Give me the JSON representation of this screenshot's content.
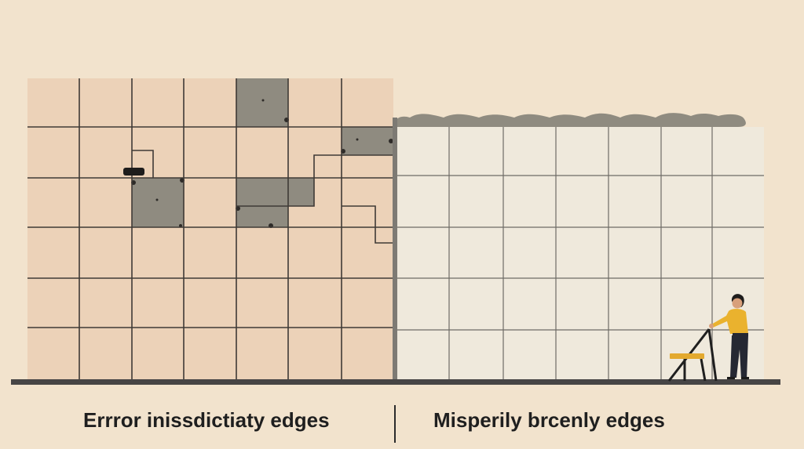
{
  "captions": {
    "left": "Errror inissdictiaty edges",
    "right": "Misperily brcenly edges"
  },
  "colors": {
    "background": "#f2e3cd",
    "left_tile": "#ecd2b8",
    "right_tile": "#efe9dc",
    "damaged_tile": "#8f8b80",
    "grout": "#3f3a36",
    "floor": "#474545",
    "person_shirt": "#eab22e",
    "person_pants": "#252833",
    "ladder_step": "#e3a92f"
  },
  "icons": {
    "left_wall": "misaligned-tile-grid",
    "right_wall": "straight-tile-grid",
    "person": "worker-figure",
    "ladder": "step-ladder"
  }
}
